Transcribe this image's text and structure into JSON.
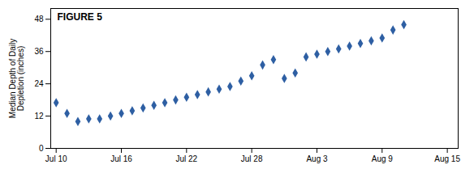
{
  "chart_data": {
    "type": "scatter",
    "title": "FIGURE 5",
    "ylabel": "Median Depth of Daily\nDepletion (inches)",
    "x": [
      0,
      1,
      2,
      3,
      4,
      5,
      6,
      7,
      8,
      9,
      10,
      11,
      12,
      13,
      14,
      15,
      16,
      17,
      18,
      19,
      20,
      21,
      22,
      23,
      24,
      25,
      26,
      27,
      28,
      29,
      30,
      31,
      32
    ],
    "values": [
      17,
      13,
      10,
      11,
      11,
      12,
      13,
      14,
      15,
      16,
      17,
      18,
      19,
      20,
      21,
      22,
      23,
      25,
      27,
      31,
      33,
      26,
      28,
      34,
      35,
      36,
      37,
      38,
      39,
      40,
      41,
      44,
      46
    ],
    "xlim": [
      -0.5,
      37
    ],
    "xticks": [
      {
        "value": 0,
        "label": "Jul 10"
      },
      {
        "value": 6,
        "label": "Jul 16"
      },
      {
        "value": 12,
        "label": "Jul 22"
      },
      {
        "value": 18,
        "label": "Jul 28"
      },
      {
        "value": 24,
        "label": "Aug 3"
      },
      {
        "value": 30,
        "label": "Aug 9"
      },
      {
        "value": 36,
        "label": "Aug 15"
      }
    ],
    "ylim": [
      0,
      52
    ],
    "yticks": [
      0,
      12,
      24,
      36,
      48
    ],
    "color": "#2E5FA3",
    "marker": "diamond"
  }
}
